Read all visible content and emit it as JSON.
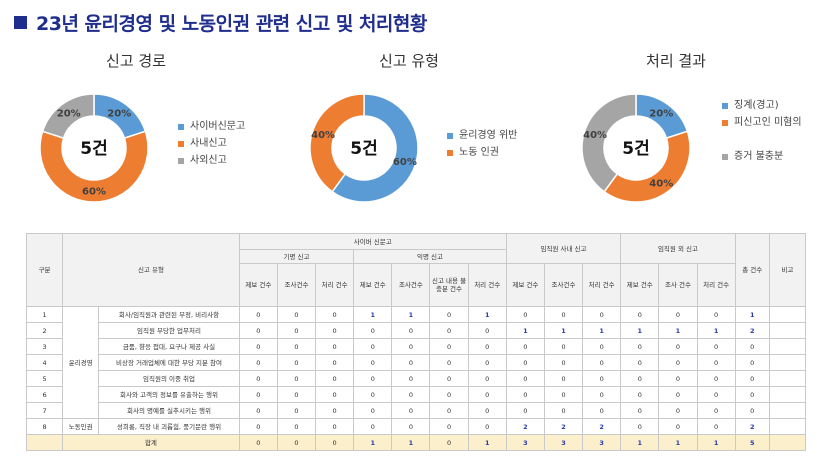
{
  "title": "23년 윤리경영 및 노동인권 관련 신고 및 처리현황",
  "chart_data": [
    {
      "type": "pie",
      "title": "신고 경로",
      "center_label": "5건",
      "categories": [
        "사이버신문고",
        "사내신고",
        "사외신고"
      ],
      "values": [
        20,
        60,
        20
      ],
      "value_labels": [
        "20%",
        "60%",
        "20%"
      ],
      "colors": [
        "#5b9bd5",
        "#ed7d31",
        "#a5a5a5"
      ]
    },
    {
      "type": "pie",
      "title": "신고 유형",
      "center_label": "5건",
      "categories": [
        "윤리경영 위반",
        "노동 인권"
      ],
      "values": [
        60,
        40
      ],
      "value_labels": [
        "60%",
        "40%"
      ],
      "colors": [
        "#5b9bd5",
        "#ed7d31"
      ]
    },
    {
      "type": "pie",
      "title": "처리 결과",
      "center_label": "5건",
      "categories": [
        "징계(경고)",
        "피신고인 미혐의",
        "증거 불충분"
      ],
      "values": [
        20,
        40,
        40
      ],
      "value_labels": [
        "20%",
        "40%",
        "40%"
      ],
      "colors": [
        "#5b9bd5",
        "#ed7d31",
        "#a5a5a5"
      ]
    }
  ],
  "table": {
    "header": {
      "col_no": "구분",
      "col_type": "신고 유형",
      "cyber": "사이버 신문고",
      "named": "기명 신고",
      "anon": "익명 신고",
      "internal": "임직원 사내 신고",
      "external": "임직원 외 신고",
      "total": "총 건수",
      "note": "비고",
      "report": "제보 건수",
      "investigate": "조사건수",
      "process": "처리 건수",
      "insufficient": "신고 내용 불충분 건수",
      "investigate2": "조사 건수"
    },
    "groups": {
      "ethics": "윤리경영",
      "labor": "노동인권"
    },
    "rows": [
      {
        "no": "1",
        "desc": "회사/임직원과 관련된 부정, 비리사항",
        "vals": [
          "0",
          "0",
          "0",
          "1",
          "1",
          "0",
          "1",
          "0",
          "0",
          "0",
          "0",
          "0",
          "0",
          "1"
        ]
      },
      {
        "no": "2",
        "desc": "임직원 부당한 업무처리",
        "vals": [
          "0",
          "0",
          "0",
          "0",
          "0",
          "0",
          "0",
          "1",
          "1",
          "1",
          "1",
          "1",
          "1",
          "2"
        ]
      },
      {
        "no": "3",
        "desc": "금품, 향응 접대, 요구나 제공 사실",
        "vals": [
          "0",
          "0",
          "0",
          "0",
          "0",
          "0",
          "0",
          "0",
          "0",
          "0",
          "0",
          "0",
          "0",
          "0"
        ]
      },
      {
        "no": "4",
        "desc": "비상장 거래업체에 대한 부당 지분 참여",
        "vals": [
          "0",
          "0",
          "0",
          "0",
          "0",
          "0",
          "0",
          "0",
          "0",
          "0",
          "0",
          "0",
          "0",
          "0"
        ]
      },
      {
        "no": "5",
        "desc": "임직원의 이중 취업",
        "vals": [
          "0",
          "0",
          "0",
          "0",
          "0",
          "0",
          "0",
          "0",
          "0",
          "0",
          "0",
          "0",
          "0",
          "0"
        ]
      },
      {
        "no": "6",
        "desc": "회사와 고객의 정보를 유출하는 행위",
        "vals": [
          "0",
          "0",
          "0",
          "0",
          "0",
          "0",
          "0",
          "0",
          "0",
          "0",
          "0",
          "0",
          "0",
          "0"
        ]
      },
      {
        "no": "7",
        "desc": "회사의 명예를 실추시키는 행위",
        "vals": [
          "0",
          "0",
          "0",
          "0",
          "0",
          "0",
          "0",
          "0",
          "0",
          "0",
          "0",
          "0",
          "0",
          "0"
        ]
      },
      {
        "no": "8",
        "desc": "성희롱, 직장 내 괴롭힘, 풍기문란 행위",
        "vals": [
          "0",
          "0",
          "0",
          "0",
          "0",
          "0",
          "0",
          "2",
          "2",
          "2",
          "0",
          "0",
          "0",
          "2"
        ]
      }
    ],
    "total_label": "합계",
    "total_vals": [
      "0",
      "0",
      "0",
      "1",
      "1",
      "0",
      "1",
      "3",
      "3",
      "3",
      "1",
      "1",
      "1",
      "5"
    ]
  }
}
